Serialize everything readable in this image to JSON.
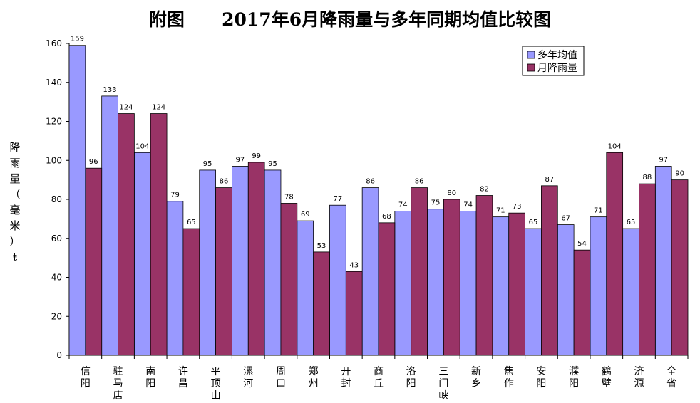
{
  "chart_data": {
    "type": "bar",
    "title": "附图      2017年6月降雨量与多年同期均值比较图",
    "ylabel": "降雨量(毫米)",
    "ylabel_chars": [
      "降",
      "雨",
      "量",
      "（",
      "毫",
      "米",
      "）",
      "ŧ"
    ],
    "ylim": [
      0,
      160
    ],
    "yticks": [
      0,
      20,
      40,
      60,
      80,
      100,
      120,
      140,
      160
    ],
    "legend_position": "top-right",
    "categories": [
      [
        "信",
        "阳"
      ],
      [
        "驻",
        "马",
        "店"
      ],
      [
        "南",
        "阳"
      ],
      [
        "许",
        "昌"
      ],
      [
        "平",
        "顶",
        "山"
      ],
      [
        "漯",
        "河"
      ],
      [
        "周",
        "口"
      ],
      [
        "郑",
        "州"
      ],
      [
        "开",
        "封"
      ],
      [
        "商",
        "丘"
      ],
      [
        "洛",
        "阳"
      ],
      [
        "三",
        "门",
        "峡"
      ],
      [
        "新",
        "乡"
      ],
      [
        "焦",
        "作"
      ],
      [
        "安",
        "阳"
      ],
      [
        "濮",
        "阳"
      ],
      [
        "鹤",
        "壁"
      ],
      [
        "济",
        "源"
      ],
      [
        "全",
        "省"
      ]
    ],
    "series": [
      {
        "name": "多年均值",
        "color": "#9999ff",
        "values": [
          159,
          133,
          104,
          79,
          95,
          97,
          95,
          69,
          77,
          86,
          74,
          75,
          74,
          71,
          65,
          67,
          71,
          65,
          97
        ]
      },
      {
        "name": "月降雨量",
        "color": "#993366",
        "values": [
          96,
          124,
          124,
          65,
          86,
          99,
          78,
          53,
          43,
          68,
          86,
          80,
          82,
          73,
          87,
          54,
          104,
          88,
          90
        ]
      }
    ]
  }
}
